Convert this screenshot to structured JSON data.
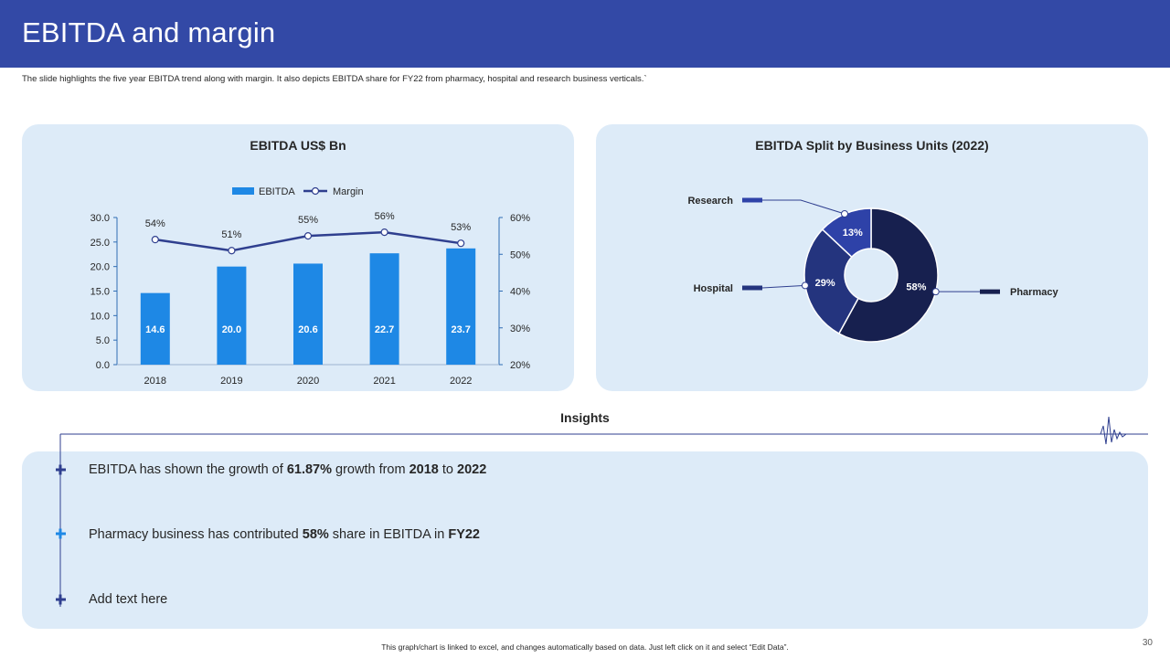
{
  "title": "EBITDA and margin",
  "subtitle": "The slide highlights the five year EBITDA trend along with margin. It also depicts EBITDA share for FY22 from pharmacy, hospital and research business verticals.`",
  "chart_data": [
    {
      "type": "bar",
      "title": "EBITDA US$ Bn",
      "categories": [
        "2018",
        "2019",
        "2020",
        "2021",
        "2022"
      ],
      "series": [
        {
          "name": "EBITDA",
          "type": "bar",
          "axis": "left",
          "values": [
            14.6,
            20.0,
            20.6,
            22.7,
            23.7
          ],
          "labels": [
            "14.6",
            "20.0",
            "20.6",
            "22.7",
            "23.7"
          ],
          "color": "#1E88E5"
        },
        {
          "name": "Margin",
          "type": "line",
          "axis": "right",
          "values": [
            54,
            51,
            55,
            56,
            53
          ],
          "labels": [
            "54%",
            "51%",
            "55%",
            "56%",
            "53%"
          ],
          "color": "#2F3F8F"
        }
      ],
      "ylim": [
        0,
        30
      ],
      "yticks": [
        "0.0",
        "5.0",
        "10.0",
        "15.0",
        "20.0",
        "25.0",
        "30.0"
      ],
      "y2lim": [
        20,
        60
      ],
      "y2ticks": [
        "20%",
        "30%",
        "40%",
        "50%",
        "60%"
      ],
      "legend": "top-center"
    },
    {
      "type": "pie",
      "donut": true,
      "title": "EBITDA Split by Business Units (2022)",
      "slices": [
        {
          "name": "Pharmacy",
          "value": 58,
          "label": "58%",
          "color": "#17204F"
        },
        {
          "name": "Hospital",
          "value": 29,
          "label": "29%",
          "color": "#24347E"
        },
        {
          "name": "Research",
          "value": 13,
          "label": "13%",
          "color": "#2E42A8"
        }
      ]
    }
  ],
  "insights": {
    "title": "Insights",
    "items": [
      {
        "parts": [
          "EBITDA has shown the growth of ",
          "61.87%",
          " growth from ",
          "2018",
          " to ",
          "2022"
        ],
        "marker_color": "#2F3F8F"
      },
      {
        "parts": [
          "Pharmacy business has contributed ",
          "58%",
          " share in EBITDA in ",
          "FY22"
        ],
        "marker_color": "#1E88E5"
      },
      {
        "parts": [
          "Add text here"
        ],
        "marker_color": "#2F3F8F"
      }
    ]
  },
  "footer": "This graph/chart is linked to excel, and changes automatically based on data. Just left click on it and select “Edit Data”.",
  "page_number": "30"
}
